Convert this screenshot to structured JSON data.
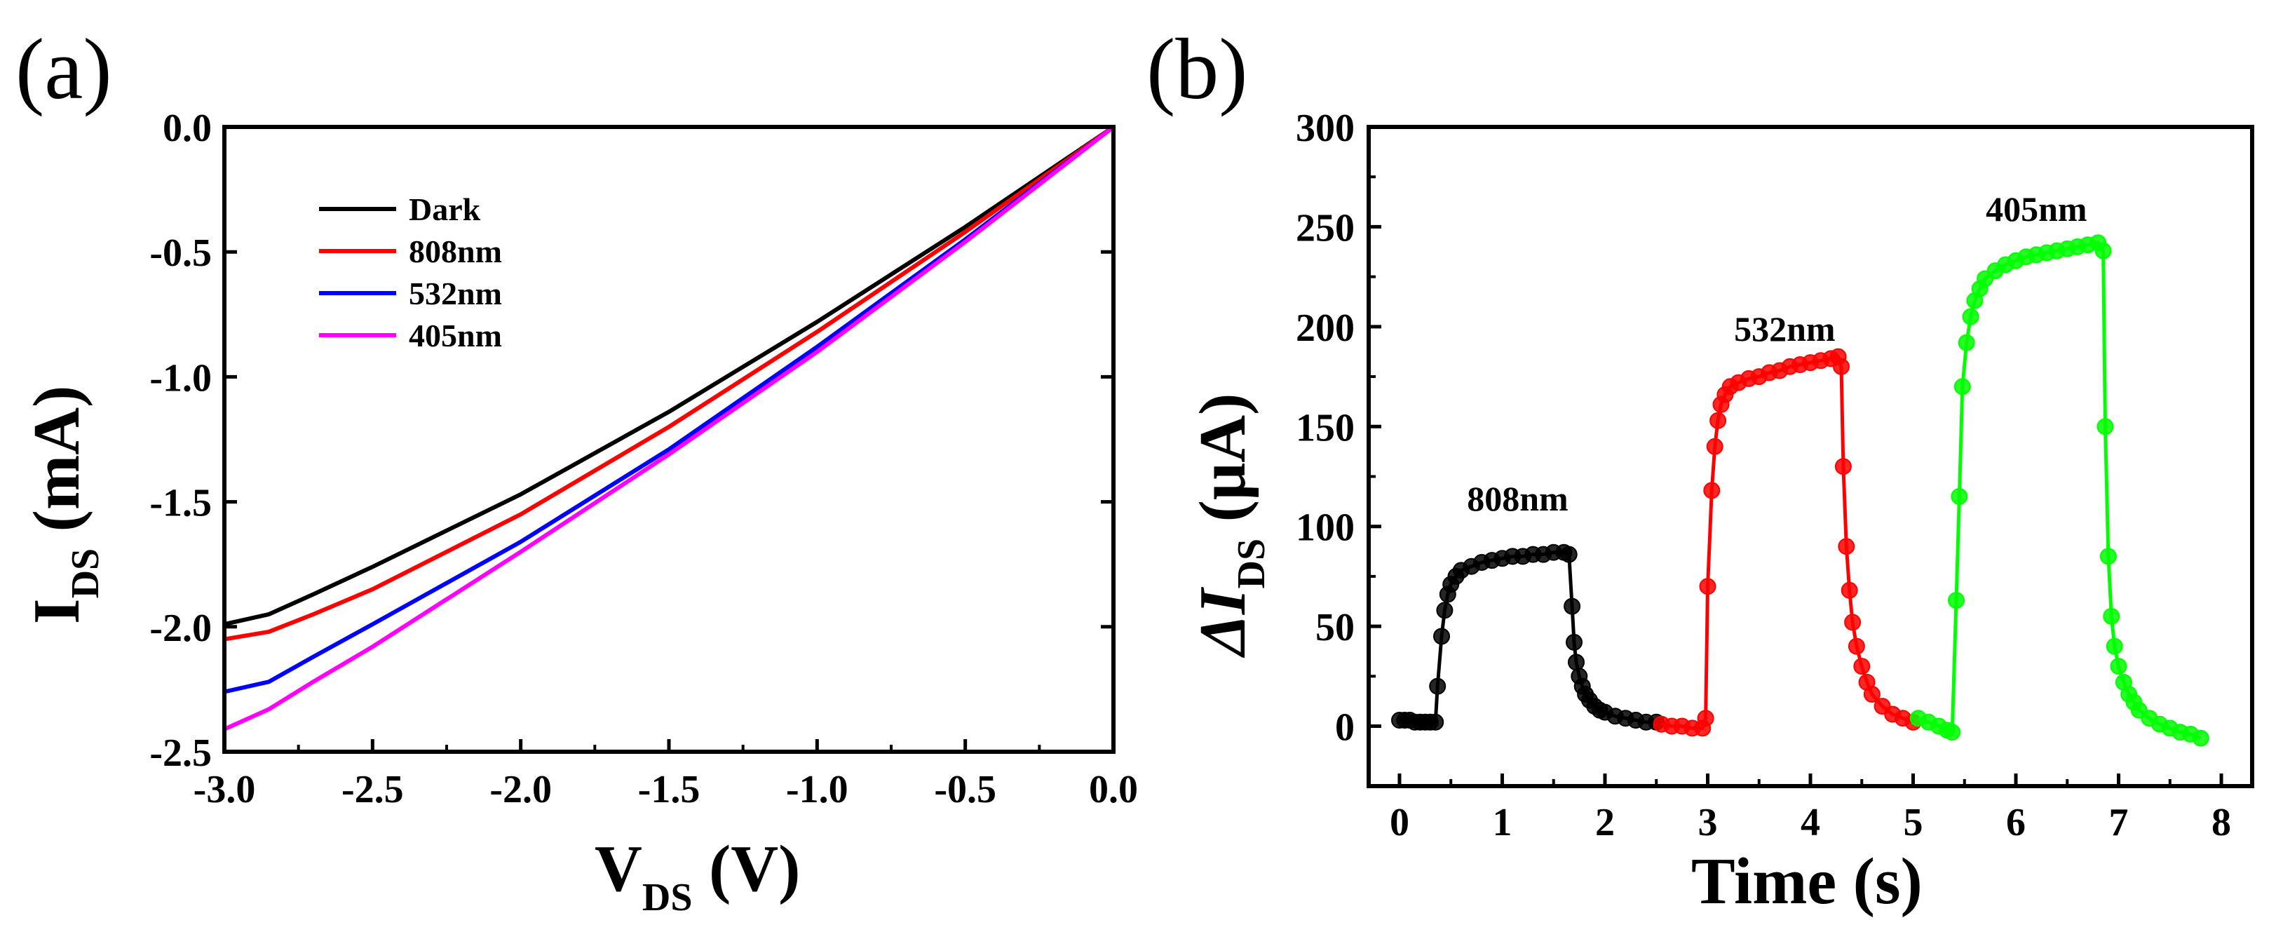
{
  "figure": {
    "label_a": "(a)",
    "label_b": "(b)"
  },
  "chart_data": [
    {
      "type": "line",
      "panel": "(a)",
      "xlabel": "V",
      "xlabel_sub": "DS",
      "xlabel_unit": " (V)",
      "ylabel": "I",
      "ylabel_sub": "DS",
      "ylabel_unit": " (mA)",
      "xlim": [
        -3.0,
        0.0
      ],
      "ylim": [
        -2.5,
        0.0
      ],
      "xticks": [
        -3.0,
        -2.5,
        -2.0,
        -1.5,
        -1.0,
        -0.5,
        0.0
      ],
      "xtick_labels": [
        "-3.0",
        "-2.5",
        "-2.0",
        "-1.5",
        "-1.0",
        "-0.5",
        "0.0"
      ],
      "yticks": [
        0.0,
        -0.5,
        -1.0,
        -1.5,
        -2.0,
        -2.5
      ],
      "ytick_labels": [
        "0.0",
        "-0.5",
        "-1.0",
        "-1.5",
        "-2.0",
        "-2.5"
      ],
      "legend_position": "top-left",
      "series": [
        {
          "name": "Dark",
          "color": "#000000",
          "x": [
            -3.0,
            -2.85,
            -2.7,
            -2.5,
            -2.0,
            -1.5,
            -1.0,
            -0.5,
            0.0
          ],
          "y": [
            -1.99,
            -1.95,
            -1.87,
            -1.76,
            -1.47,
            -1.14,
            -0.78,
            -0.4,
            0.0
          ]
        },
        {
          "name": "808nm",
          "color": "#ff0000",
          "x": [
            -3.0,
            -2.85,
            -2.7,
            -2.5,
            -2.0,
            -1.5,
            -1.0,
            -0.5,
            0.0
          ],
          "y": [
            -2.05,
            -2.02,
            -1.95,
            -1.85,
            -1.55,
            -1.2,
            -0.82,
            -0.42,
            0.0
          ]
        },
        {
          "name": "532nm",
          "color": "#0000ff",
          "x": [
            -3.0,
            -2.85,
            -2.7,
            -2.5,
            -2.0,
            -1.5,
            -1.0,
            -0.5,
            0.0
          ],
          "y": [
            -2.26,
            -2.22,
            -2.12,
            -1.99,
            -1.66,
            -1.29,
            -0.88,
            -0.45,
            0.0
          ]
        },
        {
          "name": "405nm",
          "color": "#ff00ff",
          "x": [
            -3.0,
            -2.85,
            -2.7,
            -2.5,
            -2.0,
            -1.5,
            -1.0,
            -0.5,
            0.0
          ],
          "y": [
            -2.41,
            -2.33,
            -2.22,
            -2.08,
            -1.7,
            -1.31,
            -0.9,
            -0.46,
            0.0
          ]
        }
      ]
    },
    {
      "type": "scatter",
      "panel": "(b)",
      "xlabel": "Time (s)",
      "ylabel": "ΔI",
      "ylabel_sub": "DS",
      "ylabel_unit": " (μA)",
      "xlim": [
        -0.3,
        8.3
      ],
      "ylim": [
        -30,
        300
      ],
      "xticks": [
        0,
        1,
        2,
        3,
        4,
        5,
        6,
        7,
        8
      ],
      "xtick_labels": [
        "0",
        "1",
        "2",
        "3",
        "4",
        "5",
        "6",
        "7",
        "8"
      ],
      "yticks": [
        0,
        50,
        100,
        150,
        200,
        250,
        300
      ],
      "ytick_labels": [
        "0",
        "50",
        "100",
        "150",
        "200",
        "250",
        "300"
      ],
      "annotations": [
        {
          "text": "808nm",
          "x": 1.15,
          "y": 108
        },
        {
          "text": "532nm",
          "x": 3.75,
          "y": 193
        },
        {
          "text": "405nm",
          "x": 6.2,
          "y": 253
        }
      ],
      "series": [
        {
          "name": "808nm",
          "color": "#000000",
          "x": [
            0.0,
            0.05,
            0.1,
            0.15,
            0.2,
            0.25,
            0.3,
            0.35,
            0.37,
            0.41,
            0.44,
            0.47,
            0.5,
            0.55,
            0.6,
            0.7,
            0.8,
            0.9,
            1.0,
            1.1,
            1.2,
            1.3,
            1.4,
            1.5,
            1.6,
            1.65,
            1.68,
            1.7,
            1.72,
            1.75,
            1.78,
            1.81,
            1.85,
            1.9,
            1.95,
            2.0,
            2.1,
            2.2,
            2.3,
            2.4,
            2.5
          ],
          "y": [
            3,
            3,
            3,
            2,
            2,
            2,
            2,
            2,
            20,
            45,
            58,
            66,
            71,
            75,
            78,
            80,
            82,
            83,
            84,
            85,
            85,
            86,
            86,
            87,
            87,
            86,
            60,
            42,
            32,
            25,
            20,
            16,
            13,
            10,
            8,
            7,
            5,
            4,
            3,
            2,
            2
          ]
        },
        {
          "name": "532nm",
          "color": "#ff0000",
          "x": [
            2.55,
            2.65,
            2.75,
            2.85,
            2.95,
            2.98,
            3.0,
            3.04,
            3.07,
            3.1,
            3.13,
            3.17,
            3.22,
            3.3,
            3.4,
            3.5,
            3.6,
            3.7,
            3.8,
            3.9,
            4.0,
            4.1,
            4.2,
            4.27,
            4.3,
            4.32,
            4.35,
            4.38,
            4.41,
            4.45,
            4.5,
            4.55,
            4.6,
            4.7,
            4.8,
            4.9,
            5.0
          ],
          "y": [
            1,
            0,
            0,
            -1,
            -1,
            4,
            70,
            118,
            140,
            153,
            161,
            166,
            170,
            172,
            174,
            175,
            177,
            178,
            180,
            181,
            182,
            183,
            184,
            185,
            180,
            130,
            90,
            68,
            52,
            40,
            30,
            22,
            16,
            10,
            6,
            4,
            2
          ]
        },
        {
          "name": "405nm",
          "color": "#00ff00",
          "x": [
            5.05,
            5.15,
            5.25,
            5.33,
            5.38,
            5.42,
            5.45,
            5.48,
            5.52,
            5.56,
            5.6,
            5.65,
            5.7,
            5.8,
            5.9,
            6.0,
            6.1,
            6.2,
            6.3,
            6.4,
            6.5,
            6.6,
            6.7,
            6.8,
            6.85,
            6.87,
            6.9,
            6.93,
            6.96,
            7.0,
            7.05,
            7.1,
            7.15,
            7.2,
            7.3,
            7.4,
            7.5,
            7.6,
            7.7,
            7.8
          ],
          "y": [
            4,
            2,
            0,
            -2,
            -3,
            63,
            115,
            170,
            192,
            205,
            213,
            219,
            224,
            228,
            231,
            233,
            235,
            236,
            237,
            238,
            239,
            240,
            241,
            242,
            238,
            150,
            85,
            55,
            40,
            30,
            22,
            16,
            12,
            8,
            4,
            1,
            -1,
            -3,
            -4,
            -6
          ]
        }
      ]
    }
  ]
}
